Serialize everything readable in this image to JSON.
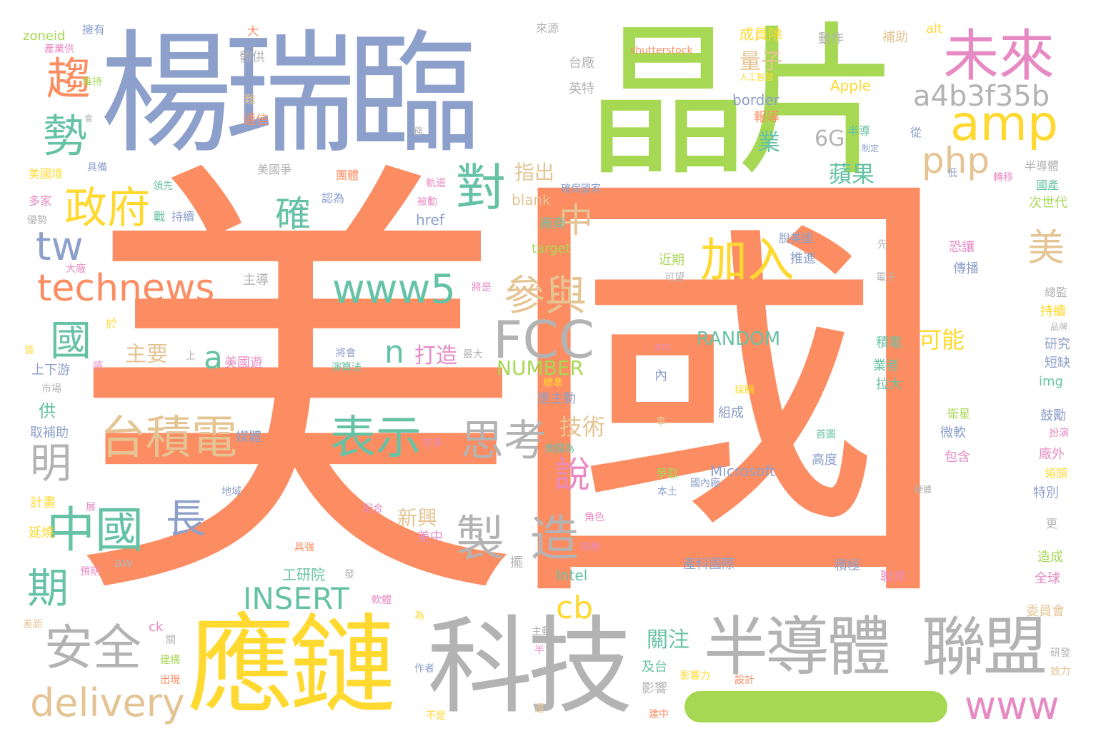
{
  "palette": {
    "orange": "#fc8d62",
    "blue": "#8da0cb",
    "green": "#a6d854",
    "yellow": "#ffd92f",
    "teal": "#66c2a5",
    "gray": "#b3b3b3",
    "pink": "#e78ac3",
    "tan": "#e5c494"
  },
  "words": [
    {
      "text": "美國",
      "color": "orange"
    },
    {
      "text": "楊瑞臨",
      "color": "blue"
    },
    {
      "text": "晶片",
      "color": "green"
    },
    {
      "text": "應鏈",
      "color": "yellow"
    },
    {
      "text": "科技",
      "color": "gray"
    },
    {
      "text": "半導體",
      "color": "gray"
    },
    {
      "text": "聯盟",
      "color": "gray"
    },
    {
      "text": "未來",
      "color": "pink"
    },
    {
      "text": "a4b3f35b",
      "color": "gray"
    },
    {
      "text": "amp",
      "color": "yellow"
    },
    {
      "text": "php",
      "color": "tan"
    },
    {
      "text": "趨",
      "color": "orange"
    },
    {
      "text": "勢",
      "color": "teal"
    },
    {
      "text": "政府",
      "color": "yellow"
    },
    {
      "text": "tw",
      "color": "blue"
    },
    {
      "text": "technews",
      "color": "orange"
    },
    {
      "text": "對",
      "color": "teal"
    },
    {
      "text": "確",
      "color": "teal"
    },
    {
      "text": "中",
      "color": "tan"
    },
    {
      "text": "www5",
      "color": "teal"
    },
    {
      "text": "加入",
      "color": "yellow"
    },
    {
      "text": "美",
      "color": "tan"
    },
    {
      "text": "參與",
      "color": "tan"
    },
    {
      "text": "FCC",
      "color": "gray"
    },
    {
      "text": "國",
      "color": "teal"
    },
    {
      "text": "a",
      "color": "teal"
    },
    {
      "text": "n",
      "color": "teal"
    },
    {
      "text": "台積電",
      "color": "tan"
    },
    {
      "text": "表示",
      "color": "teal"
    },
    {
      "text": "思考",
      "color": "gray"
    },
    {
      "text": "明",
      "color": "gray"
    },
    {
      "text": "中國",
      "color": "teal"
    },
    {
      "text": "長",
      "color": "blue"
    },
    {
      "text": "製",
      "color": "gray"
    },
    {
      "text": "造",
      "color": "gray"
    },
    {
      "text": "期",
      "color": "teal"
    },
    {
      "text": "INSERT",
      "color": "teal"
    },
    {
      "text": "安全",
      "color": "gray"
    },
    {
      "text": "delivery",
      "color": "tan"
    },
    {
      "text": "cb",
      "color": "yellow"
    },
    {
      "text": "www",
      "color": "pink"
    },
    {
      "text": "說",
      "color": "pink"
    },
    {
      "text": "量子",
      "color": "tan"
    },
    {
      "text": "蘋果",
      "color": "teal"
    },
    {
      "text": "業",
      "color": "teal"
    },
    {
      "text": "6G",
      "color": "gray"
    },
    {
      "text": "指出",
      "color": "tan"
    },
    {
      "text": "主要",
      "color": "tan"
    },
    {
      "text": "打造",
      "color": "pink"
    },
    {
      "text": "NUMBER",
      "color": "green"
    },
    {
      "text": "技術",
      "color": "tan"
    },
    {
      "text": "RANDOM",
      "color": "teal"
    },
    {
      "text": "可能",
      "color": "yellow"
    },
    {
      "text": "HERE",
      "color": "orange"
    },
    {
      "text": "Microsoft",
      "color": "blue"
    },
    {
      "text": "新興",
      "color": "tan"
    },
    {
      "text": "關注",
      "color": "teal"
    },
    {
      "text": "工研院",
      "color": "teal"
    },
    {
      "text": "Intel",
      "color": "teal"
    },
    {
      "text": "Apple",
      "color": "yellow"
    },
    {
      "text": "border",
      "color": "blue"
    },
    {
      "text": "shutterstock",
      "color": "orange"
    },
    {
      "text": "成員除",
      "color": "yellow"
    },
    {
      "text": "動作",
      "color": "gray"
    },
    {
      "text": "補助",
      "color": "tan"
    },
    {
      "text": "alt",
      "color": "yellow"
    },
    {
      "text": "zoneid",
      "color": "green"
    },
    {
      "text": "擁有",
      "color": "blue"
    },
    {
      "text": "大",
      "color": "orange"
    },
    {
      "text": "來源",
      "color": "gray"
    },
    {
      "text": "產業供",
      "color": "pink"
    },
    {
      "text": "體供",
      "color": "gray"
    },
    {
      "text": "台廠",
      "color": "gray"
    },
    {
      "text": "英特",
      "color": "gray"
    },
    {
      "text": "維持",
      "color": "green"
    },
    {
      "text": "難",
      "color": "tan"
    },
    {
      "text": "通信",
      "color": "orange"
    },
    {
      "text": "人工智慧",
      "color": "yellow"
    },
    {
      "text": "報導",
      "color": "orange"
    },
    {
      "text": "從",
      "color": "blue"
    },
    {
      "text": "美國爭",
      "color": "gray"
    },
    {
      "text": "團體",
      "color": "orange"
    },
    {
      "text": "美國境",
      "color": "yellow"
    },
    {
      "text": "具備",
      "color": "blue"
    },
    {
      "text": "多家",
      "color": "pink"
    },
    {
      "text": "領先",
      "color": "teal"
    },
    {
      "text": "認為",
      "color": "blue"
    },
    {
      "text": "優勢",
      "color": "gray"
    },
    {
      "text": "戰",
      "color": "teal"
    },
    {
      "text": "持續",
      "color": "blue"
    },
    {
      "text": "blank",
      "color": "tan"
    },
    {
      "text": "確保國家",
      "color": "blue"
    },
    {
      "text": "低",
      "color": "blue"
    },
    {
      "text": "轉移",
      "color": "pink"
    },
    {
      "text": "半導體",
      "color": "gray"
    },
    {
      "text": "國產",
      "color": "teal"
    },
    {
      "text": "次世代",
      "color": "green"
    },
    {
      "text": "href",
      "color": "blue"
    },
    {
      "text": "target",
      "color": "green"
    },
    {
      "text": "廠商",
      "color": "teal"
    },
    {
      "text": "近期",
      "color": "green"
    },
    {
      "text": "脫美國",
      "color": "blue"
    },
    {
      "text": "推進",
      "color": "blue"
    },
    {
      "text": "恐讓",
      "color": "pink"
    },
    {
      "text": "傳播",
      "color": "blue"
    },
    {
      "text": "電子",
      "color": "gray"
    },
    {
      "text": "先",
      "color": "gray"
    },
    {
      "text": "總監",
      "color": "gray"
    },
    {
      "text": "持續",
      "color": "yellow"
    },
    {
      "text": "品牌",
      "color": "gray"
    },
    {
      "text": "研究",
      "color": "blue"
    },
    {
      "text": "短缺",
      "color": "blue"
    },
    {
      "text": "img",
      "color": "teal"
    },
    {
      "text": "主導",
      "color": "gray"
    },
    {
      "text": "大廠",
      "color": "pink"
    },
    {
      "text": "將是",
      "color": "pink"
    },
    {
      "text": "於",
      "color": "yellow"
    },
    {
      "text": "上",
      "color": "gray"
    },
    {
      "text": "美國遊",
      "color": "pink"
    },
    {
      "text": "將會",
      "color": "blue"
    },
    {
      "text": "演算法",
      "color": "teal"
    },
    {
      "text": "最大",
      "color": "gray"
    },
    {
      "text": "上下游",
      "color": "blue"
    },
    {
      "text": "市場",
      "color": "gray"
    },
    {
      "text": "供",
      "color": "teal"
    },
    {
      "text": "取補助",
      "color": "blue"
    },
    {
      "text": "媒體",
      "color": "blue"
    },
    {
      "text": "許多",
      "color": "pink"
    },
    {
      "text": "美國為",
      "color": "teal"
    },
    {
      "text": "應主動",
      "color": "blue"
    },
    {
      "text": "src",
      "color": "pink"
    },
    {
      "text": "內",
      "color": "blue"
    },
    {
      "text": "積電",
      "color": "teal"
    },
    {
      "text": "業者",
      "color": "teal"
    },
    {
      "text": "拉大",
      "color": "teal"
    },
    {
      "text": "組成",
      "color": "blue"
    },
    {
      "text": "採購",
      "color": "yellow"
    },
    {
      "text": "首圖",
      "color": "teal"
    },
    {
      "text": "微軟",
      "color": "blue"
    },
    {
      "text": "衛星",
      "color": "green"
    },
    {
      "text": "包含",
      "color": "pink"
    },
    {
      "text": "高度",
      "color": "blue"
    },
    {
      "text": "鼓勵",
      "color": "blue"
    },
    {
      "text": "扮演",
      "color": "pink"
    },
    {
      "text": "廠外",
      "color": "pink"
    },
    {
      "text": "領頭",
      "color": "yellow"
    },
    {
      "text": "特別",
      "color": "blue"
    },
    {
      "text": "計畫",
      "color": "yellow"
    },
    {
      "text": "爭取",
      "color": "green"
    },
    {
      "text": "國內廠",
      "color": "blue"
    },
    {
      "text": "本土",
      "color": "blue"
    },
    {
      "text": "硬體",
      "color": "gray"
    },
    {
      "text": "地域",
      "color": "blue"
    },
    {
      "text": "配合",
      "color": "pink"
    },
    {
      "text": "角色",
      "color": "pink"
    },
    {
      "text": "更",
      "color": "gray"
    },
    {
      "text": "延燒",
      "color": "yellow"
    },
    {
      "text": "具強",
      "color": "orange"
    },
    {
      "text": "美中",
      "color": "pink"
    },
    {
      "text": "商應",
      "color": "pink"
    },
    {
      "text": "產科國際",
      "color": "blue"
    },
    {
      "text": "積極",
      "color": "blue"
    },
    {
      "text": "聯邦",
      "color": "pink"
    },
    {
      "text": "造成",
      "color": "green"
    },
    {
      "text": "全球",
      "color": "pink"
    },
    {
      "text": "預期",
      "color": "pink"
    },
    {
      "text": "aw",
      "color": "gray"
    },
    {
      "text": "擺",
      "color": "gray"
    },
    {
      "text": "軟體",
      "color": "pink"
    },
    {
      "text": "為",
      "color": "yellow"
    },
    {
      "text": "委員會",
      "color": "tan"
    },
    {
      "text": "差距",
      "color": "tan"
    },
    {
      "text": "ck",
      "color": "pink"
    },
    {
      "text": "關",
      "color": "gray"
    },
    {
      "text": "主動",
      "color": "gray"
    },
    {
      "text": "建構",
      "color": "green"
    },
    {
      "text": "出現",
      "color": "orange"
    },
    {
      "text": "作者",
      "color": "blue"
    },
    {
      "text": "及台",
      "color": "teal"
    },
    {
      "text": "影響",
      "color": "gray"
    },
    {
      "text": "影響力",
      "color": "yellow"
    },
    {
      "text": "設計",
      "color": "orange"
    },
    {
      "text": "研發",
      "color": "gray"
    },
    {
      "text": "致力",
      "color": "tan"
    },
    {
      "text": "半",
      "color": "pink"
    },
    {
      "text": "不是",
      "color": "yellow"
    },
    {
      "text": "建中",
      "color": "orange"
    },
    {
      "text": "還",
      "color": "tan"
    },
    {
      "text": "皆",
      "color": "yellow"
    },
    {
      "text": "將",
      "color": "pink"
    },
    {
      "text": "展",
      "color": "pink"
    },
    {
      "text": "務",
      "color": "gray"
    },
    {
      "text": "會",
      "color": "gray"
    },
    {
      "text": "被動",
      "color": "pink"
    },
    {
      "text": "軌道",
      "color": "pink"
    },
    {
      "text": "事",
      "color": "tan"
    },
    {
      "text": "可望",
      "color": "gray"
    },
    {
      "text": "半導",
      "color": "teal"
    },
    {
      "text": "制定",
      "color": "blue"
    },
    {
      "text": "發",
      "color": "gray"
    },
    {
      "text": "標準",
      "color": "yellow"
    }
  ]
}
